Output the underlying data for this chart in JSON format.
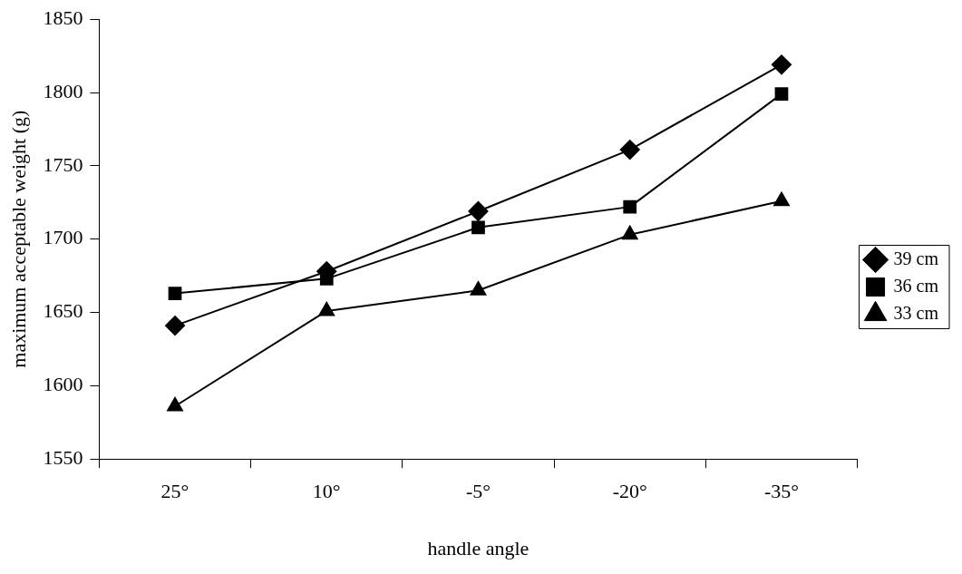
{
  "chart_data": {
    "type": "line",
    "xlabel": "handle angle",
    "ylabel": "maximum acceptable weight (g)",
    "categories": [
      "25°",
      "10°",
      "-5°",
      "-20°",
      "-35°"
    ],
    "series": [
      {
        "name": "39 cm",
        "color": "#000000",
        "marker": "diamond",
        "values": [
          1641,
          1678,
          1719,
          1761,
          1819
        ]
      },
      {
        "name": "36 cm",
        "color": "#000000",
        "marker": "square",
        "values": [
          1663,
          1673,
          1708,
          1722,
          1799
        ]
      },
      {
        "name": "33 cm",
        "color": "#000000",
        "marker": "triangle",
        "values": [
          1586,
          1651,
          1665,
          1703,
          1726
        ]
      }
    ],
    "ylim": [
      1550,
      1850
    ],
    "yticks": [
      1550,
      1600,
      1650,
      1700,
      1750,
      1800,
      1850
    ],
    "grid": false,
    "legend": "right",
    "line_style": "solid"
  }
}
